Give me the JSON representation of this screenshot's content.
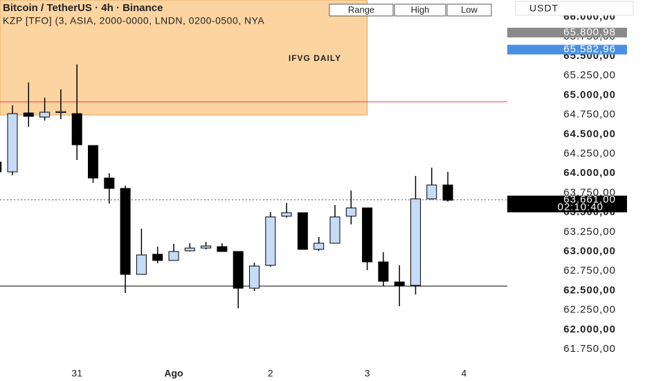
{
  "chart_data": {
    "type": "candlestick",
    "title": "Bitcoin / TetherUS · 4h · Binance",
    "subtitle": "KZP [TFO] (3, ASIA, 2000-0000, LNDN, 0200-0500, NYA",
    "buttons": [
      "Range",
      "High",
      "Low"
    ],
    "currency": "USDT",
    "categories": [
      null,
      null,
      null,
      null,
      null,
      "31",
      null,
      null,
      null,
      null,
      null,
      "Ago",
      null,
      null,
      null,
      null,
      null,
      "2",
      null,
      null,
      null,
      null,
      null,
      "3",
      null,
      null,
      null,
      null,
      null,
      "4"
    ],
    "open": [
      64144,
      64019,
      64773,
      64720,
      64782,
      64764,
      64356,
      63940,
      63807,
      62707,
      62965,
      62885,
      63009,
      63044,
      63062,
      63000,
      62530,
      62823,
      63452,
      63496,
      63027,
      63106,
      63452,
      63558,
      62867,
      62610,
      62566,
      63674,
      63851,
      null
    ],
    "high": [
      64144,
      64870,
      65163,
      64968,
      65074,
      65394,
      64356,
      64002,
      63842,
      63293,
      63062,
      63098,
      63106,
      63124,
      63106,
      63000,
      62858,
      63505,
      63621,
      63496,
      63186,
      63594,
      63780,
      63558,
      62991,
      62823,
      63966,
      64073,
      64019,
      null
    ],
    "low": [
      64019,
      63975,
      64596,
      64675,
      64693,
      64170,
      63878,
      63612,
      62468,
      62707,
      62849,
      62885,
      63000,
      63027,
      63000,
      62273,
      62495,
      62805,
      63434,
      63027,
      63009,
      63106,
      63346,
      62761,
      62557,
      62300,
      62450,
      63665,
      63638,
      null
    ],
    "close": [
      64019,
      64764,
      64729,
      64782,
      64791,
      64365,
      63940,
      63807,
      62707,
      62956,
      62885,
      63000,
      63044,
      63071,
      63000,
      62530,
      62814,
      63443,
      63496,
      63027,
      63106,
      63443,
      63558,
      62867,
      62619,
      62566,
      63674,
      63851,
      63656,
      null
    ],
    "up_color": "#c6dbf7",
    "down_color": "#000000",
    "ylim": [
      61520,
      66218
    ],
    "yticks": [
      {
        "value": 66000,
        "label": "66.000,00"
      },
      {
        "value": 65750,
        "label": "65.750,00"
      },
      {
        "value": 65500,
        "label": "65.500,00"
      },
      {
        "value": 65250,
        "label": "65.250,00"
      },
      {
        "value": 65000,
        "label": "65.000,00"
      },
      {
        "value": 64750,
        "label": "64.750,00"
      },
      {
        "value": 64500,
        "label": "64.500,00"
      },
      {
        "value": 64250,
        "label": "64.250,00"
      },
      {
        "value": 64000,
        "label": "64.000,00"
      },
      {
        "value": 63750,
        "label": "63.750,00"
      },
      {
        "value": 63500,
        "label": "63.500,00"
      },
      {
        "value": 63250,
        "label": "63.250,00"
      },
      {
        "value": 63000,
        "label": "63.000,00"
      },
      {
        "value": 62750,
        "label": "62.750,00"
      },
      {
        "value": 62500,
        "label": "62.500,00"
      },
      {
        "value": 62250,
        "label": "62.250,00"
      },
      {
        "value": 62000,
        "label": "62.000,00"
      },
      {
        "value": 61750,
        "label": "61.750,00"
      }
    ],
    "zone": {
      "label": "IFVG DAILY",
      "low": 64746,
      "color": "#fcd4a0"
    },
    "lines": [
      {
        "value": 64915,
        "color": "#f23645"
      },
      {
        "value": 62557,
        "color": "#000000"
      }
    ],
    "price_badges": [
      {
        "value": 65800.98,
        "label": "65.800,98",
        "color": "#8a8a8a"
      },
      {
        "value": 65582.96,
        "label": "65.582,96",
        "color": "#4a90e2"
      }
    ],
    "current_price": {
      "value": 63661,
      "label": "63.661,00",
      "countdown": "02:10:40"
    }
  }
}
